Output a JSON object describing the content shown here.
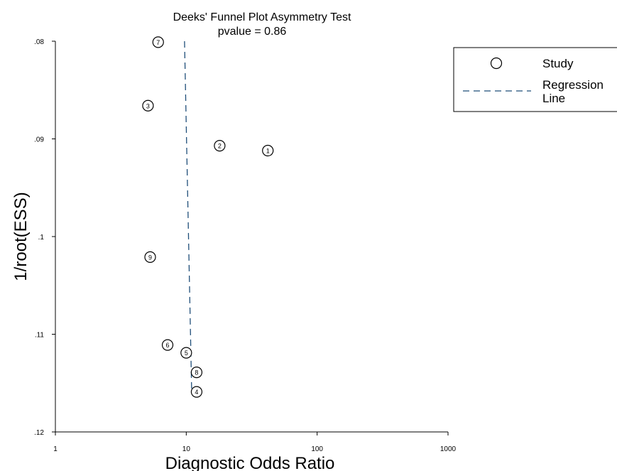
{
  "chart_data": {
    "type": "scatter",
    "title": "Deeks' Funnel Plot Asymmetry Test",
    "subtitle": "pvalue  =   0.86",
    "xlabel": "Diagnostic Odds Ratio",
    "ylabel": "1/root(ESS)",
    "x_scale": "log",
    "xlim": [
      1,
      1000
    ],
    "x_ticks": [
      1,
      10,
      100,
      1000
    ],
    "x_tick_labels": [
      "1",
      "10",
      "100",
      "1000"
    ],
    "ylim": [
      0.08,
      0.12
    ],
    "y_inverted": true,
    "y_ticks": [
      0.08,
      0.09,
      0.1,
      0.11,
      0.12
    ],
    "y_tick_labels": [
      ".08",
      ".09",
      ".1",
      ".11",
      ".12"
    ],
    "grid": false,
    "legend_position": "top-right",
    "legend": [
      {
        "name": "Study",
        "marker": "circle"
      },
      {
        "name": "Regression Line",
        "marker": "dashed-line"
      }
    ],
    "series": [
      {
        "name": "Study",
        "points": [
          {
            "label": "1",
            "x": 42.0,
            "y": 0.0912
          },
          {
            "label": "2",
            "x": 18.0,
            "y": 0.0907
          },
          {
            "label": "3",
            "x": 5.1,
            "y": 0.0866
          },
          {
            "label": "4",
            "x": 12.0,
            "y": 0.1159
          },
          {
            "label": "5",
            "x": 10.0,
            "y": 0.1119
          },
          {
            "label": "6",
            "x": 7.2,
            "y": 0.1111
          },
          {
            "label": "7",
            "x": 6.1,
            "y": 0.0801
          },
          {
            "label": "8",
            "x": 12.0,
            "y": 0.1139
          },
          {
            "label": "9",
            "x": 5.3,
            "y": 0.1021
          }
        ]
      },
      {
        "name": "Regression Line",
        "line": [
          {
            "x": 9.7,
            "y": 0.08
          },
          {
            "x": 11.0,
            "y": 0.1159
          }
        ]
      }
    ],
    "colors": {
      "regression_line": "#1f4e79",
      "markers": "#000000",
      "axes": "#000000"
    }
  }
}
